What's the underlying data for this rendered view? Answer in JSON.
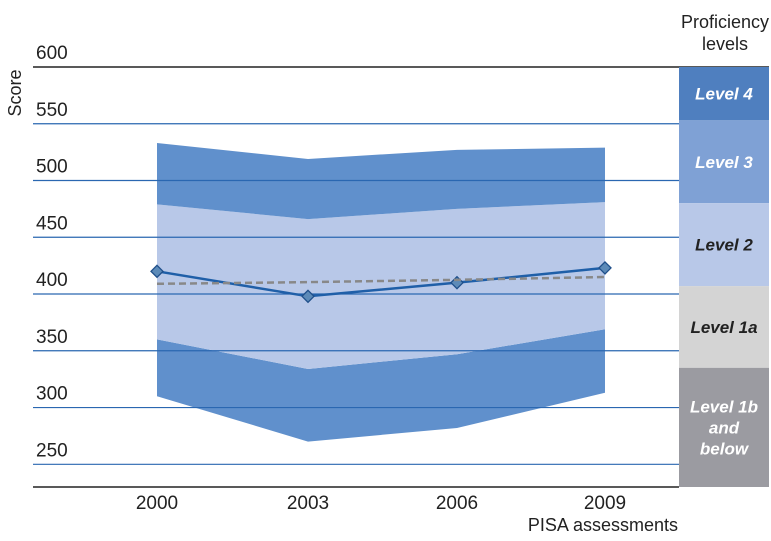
{
  "chart_data": {
    "type": "line",
    "ylabel": "Score",
    "xlabel": "PISA assessments",
    "legend_title": "Proficiency levels",
    "categories": [
      "2000",
      "2003",
      "2006",
      "2009"
    ],
    "ylim": [
      230,
      600
    ],
    "yticks": [
      250,
      300,
      350,
      400,
      450,
      500,
      550,
      600
    ],
    "grid": true,
    "series": [
      {
        "values": [
          420,
          398,
          410,
          423
        ],
        "style": "solid-with-markers",
        "color": "#1f5fa8"
      },
      {
        "values": [
          409,
          410.5,
          412.5,
          415
        ],
        "style": "dashed",
        "color": "#888888"
      }
    ],
    "bands": [
      {
        "lower": [
          310,
          270,
          282,
          313
        ],
        "upper": [
          360,
          334,
          347,
          369
        ],
        "color": "#6090cc"
      },
      {
        "lower": [
          360,
          334,
          347,
          369
        ],
        "upper": [
          479,
          466,
          475,
          481
        ],
        "color": "#b8c8e8"
      },
      {
        "lower": [
          479,
          466,
          475,
          481
        ],
        "upper": [
          533,
          519,
          527,
          529
        ],
        "color": "#6090cc"
      }
    ],
    "levels": [
      {
        "label": "Level 4",
        "min": 553,
        "max": 600,
        "bg": "#4f7fbf",
        "fg": "#ffffff"
      },
      {
        "label": "Level 3",
        "min": 480,
        "max": 553,
        "bg": "#7fa1d5",
        "fg": "#ffffff"
      },
      {
        "label": "Level 2",
        "min": 407,
        "max": 480,
        "bg": "#b8c8e8",
        "fg": "#222222"
      },
      {
        "label": "Level 1a",
        "min": 335,
        "max": 407,
        "bg": "#d4d4d4",
        "fg": "#222222"
      },
      {
        "label": "Level 1b and below",
        "min": 230,
        "max": 335,
        "bg": "#9b9ba1",
        "fg": "#ffffff"
      }
    ]
  }
}
